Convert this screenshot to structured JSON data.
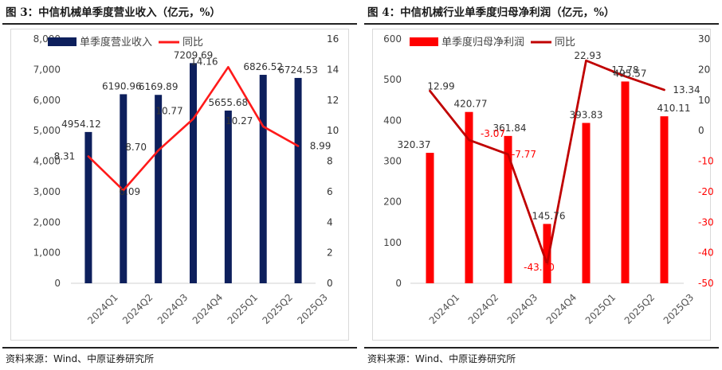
{
  "figures": [
    {
      "title": "图 3：中信机械单季度营业收入（亿元，%）",
      "source": "资料来源：Wind、中原证券研究所"
    },
    {
      "title": "图 4：中信机械行业单季度归母净利润（亿元，%）",
      "source": "资料来源：Wind、中原证券研究所"
    }
  ],
  "chart_data": [
    {
      "type": "bar",
      "title": "单季度营业收入",
      "categories": [
        "2024Q1",
        "2024Q2",
        "2024Q3",
        "2024Q4",
        "2025Q1",
        "2025Q2",
        "2025Q3"
      ],
      "series": [
        {
          "name": "单季度营业收入",
          "type": "bar",
          "axis": "left",
          "color": "#0d1f5c",
          "values": [
            4954.12,
            6190.96,
            6169.89,
            7209.69,
            5655.68,
            6826.52,
            6724.53
          ],
          "labels": [
            "4954.12",
            "6190.96",
            "6169.89",
            "7209.69",
            "5655.68",
            "6826.52",
            "6724.53"
          ]
        },
        {
          "name": "同比",
          "type": "line",
          "axis": "right",
          "color": "#ff1a1a",
          "values": [
            8.31,
            6.09,
            8.7,
            10.77,
            14.16,
            10.27,
            8.99
          ],
          "labels": [
            "8.31",
            "6.09",
            "8.70",
            "10.77",
            "14.16",
            "10.27",
            "8.99"
          ]
        }
      ],
      "y_left": {
        "range": [
          0,
          8000
        ],
        "ticks": [
          0,
          1000,
          2000,
          3000,
          4000,
          5000,
          6000,
          7000,
          8000
        ],
        "tick_labels": [
          "0",
          "1,000",
          "2,000",
          "3,000",
          "4,000",
          "5,000",
          "6,000",
          "7,000",
          "8,000"
        ]
      },
      "y_right": {
        "range": [
          0,
          16
        ],
        "ticks": [
          0,
          2,
          4,
          6,
          8,
          10,
          12,
          14,
          16
        ],
        "tick_labels": [
          "0",
          "2",
          "4",
          "6",
          "8",
          "10",
          "12",
          "14",
          "16"
        ]
      },
      "legend": "top-left"
    },
    {
      "type": "bar",
      "title": "单季度归母净利润",
      "categories": [
        "2024Q1",
        "2024Q2",
        "2024Q3",
        "2024Q4",
        "2025Q1",
        "2025Q2",
        "2025Q3"
      ],
      "series": [
        {
          "name": "单季度归母净利润",
          "type": "bar",
          "axis": "left",
          "color": "#ff0000",
          "values": [
            320.37,
            420.77,
            361.84,
            145.76,
            393.83,
            495.57,
            410.11
          ],
          "labels": [
            "320.37",
            "420.77",
            "361.84",
            "145.76",
            "393.83",
            "495.57",
            "410.11"
          ]
        },
        {
          "name": "同比",
          "type": "line",
          "axis": "right",
          "color": "#c00000",
          "values": [
            12.99,
            -3.07,
            -7.77,
            -43.7,
            22.93,
            17.78,
            13.34
          ],
          "labels": [
            "12.99",
            "-3.07",
            "-7.77",
            "-43.70",
            "22.93",
            "17.78",
            "13.34"
          ]
        }
      ],
      "y_left": {
        "range": [
          0,
          600
        ],
        "ticks": [
          0,
          100,
          200,
          300,
          400,
          500,
          600
        ],
        "tick_labels": [
          "0",
          "100",
          "200",
          "300",
          "400",
          "500",
          "600"
        ]
      },
      "y_right": {
        "range": [
          -50,
          30
        ],
        "ticks": [
          -50,
          -40,
          -30,
          -20,
          -10,
          0,
          10,
          20,
          30
        ],
        "tick_labels": [
          "-50",
          "-40",
          "-30",
          "-20",
          "-10",
          "0",
          "10",
          "20",
          "30"
        ],
        "negative_color": "#ff0000"
      },
      "legend": "top-left"
    }
  ]
}
